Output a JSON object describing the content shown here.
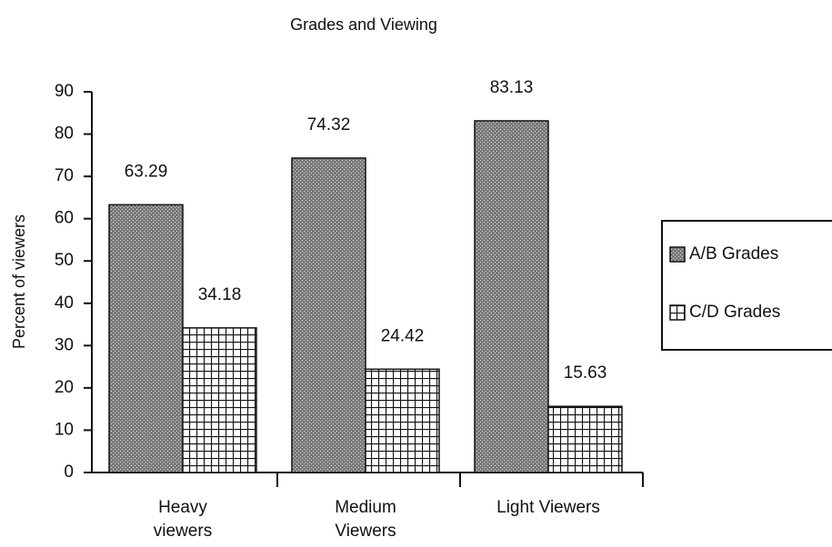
{
  "chart_data": {
    "type": "bar",
    "title": "Grades and Viewing",
    "y_label": "Percent of viewers",
    "categories": [
      "Heavy viewers",
      "Medium Viewers",
      "Light Viewers"
    ],
    "series": [
      {
        "name": "A/B Grades",
        "color": "#7a7a7a",
        "values": [
          63.29,
          74.32,
          83.13
        ]
      },
      {
        "name": "C/D Grades",
        "color": "#111111",
        "values": [
          34.18,
          24.42,
          15.63
        ]
      }
    ],
    "ylim": [
      0,
      90
    ],
    "yticks": [
      0,
      10,
      20,
      30,
      40,
      50,
      60,
      70,
      80,
      90
    ],
    "legend": "right"
  }
}
